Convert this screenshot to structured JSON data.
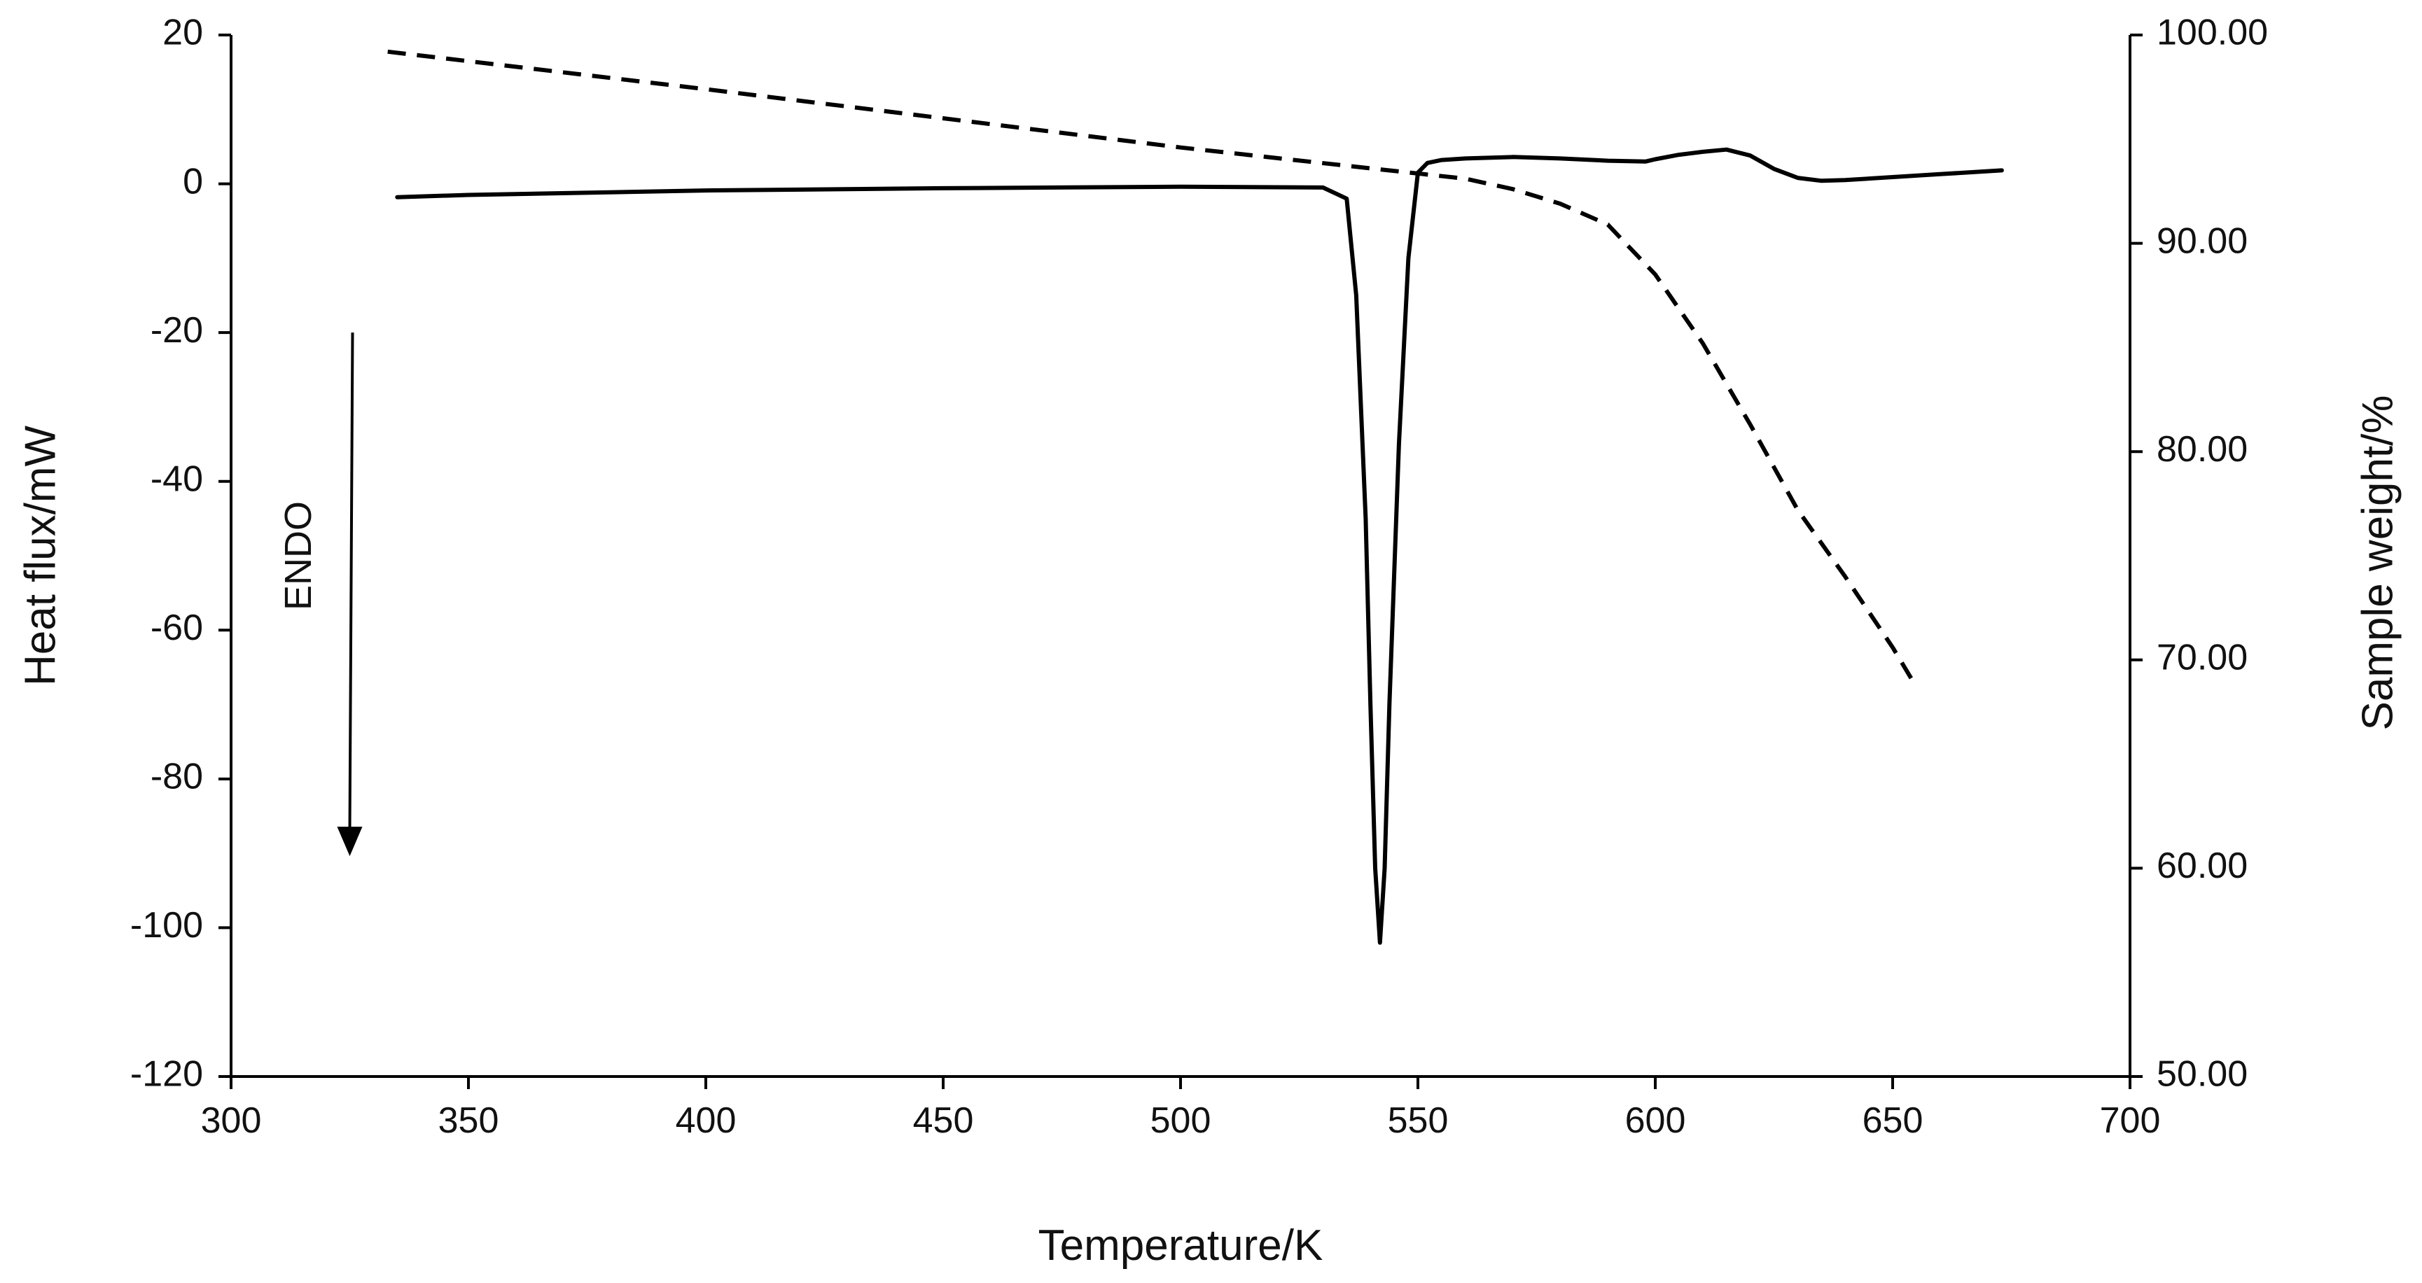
{
  "chart_data": {
    "type": "line",
    "xlabel": "Temperature/K",
    "ylabel": "Heat flux/mW",
    "y2label": "Sample weight/%",
    "xlim": [
      300,
      700
    ],
    "ylim": [
      -120,
      20
    ],
    "y2lim": [
      50,
      100
    ],
    "x_ticks": [
      "300",
      "350",
      "400",
      "450",
      "500",
      "550",
      "600",
      "650",
      "700"
    ],
    "y_ticks": [
      "20",
      "0",
      "-20",
      "-40",
      "-60",
      "-80",
      "-100",
      "-120"
    ],
    "y2_ticks": [
      "100.00",
      "90.00",
      "80.00",
      "70.00",
      "60.00",
      "50.00"
    ],
    "grid": false,
    "legend": "none",
    "annotation": {
      "text": "ENDO",
      "arrow": {
        "x": 325,
        "y_from": -20,
        "y_to": -90
      }
    },
    "series": [
      {
        "axis": "left",
        "style": "solid",
        "color": "#000000",
        "x": [
          335,
          350,
          400,
          450,
          500,
          530,
          535,
          537,
          539,
          540,
          541,
          542,
          543,
          544,
          546,
          548,
          550,
          552,
          555,
          560,
          570,
          580,
          590,
          598,
          600,
          605,
          610,
          615,
          620,
          625,
          630,
          635,
          640,
          650,
          660,
          673
        ],
        "y": [
          -1.8,
          -1.5,
          -0.9,
          -0.6,
          -0.4,
          -0.5,
          -2,
          -15,
          -45,
          -70,
          -92,
          -102,
          -92,
          -70,
          -35,
          -10,
          1.5,
          2.8,
          3.2,
          3.4,
          3.6,
          3.4,
          3.1,
          3.0,
          3.3,
          3.9,
          4.3,
          4.6,
          3.8,
          2.0,
          0.8,
          0.4,
          0.5,
          0.9,
          1.3,
          1.8
        ]
      },
      {
        "axis": "right",
        "style": "dashed",
        "color": "#000000",
        "x": [
          333,
          400,
          450,
          500,
          540,
          560,
          570,
          580,
          590,
          600,
          610,
          620,
          630,
          640,
          650,
          655
        ],
        "y": [
          99.2,
          97.4,
          96.0,
          94.6,
          93.6,
          93.1,
          92.6,
          91.9,
          90.9,
          88.5,
          85.2,
          81.3,
          77.2,
          74.0,
          70.6,
          68.7
        ]
      }
    ]
  }
}
